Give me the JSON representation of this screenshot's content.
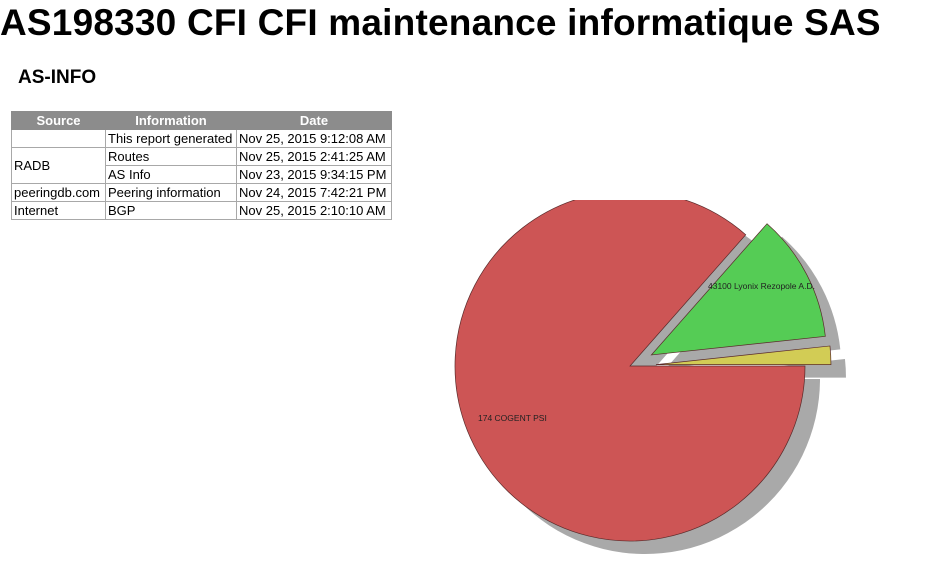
{
  "page": {
    "title": "AS198330 CFI CFI maintenance informatique SAS",
    "section_heading": "AS-INFO"
  },
  "info_table": {
    "headers": [
      "Source",
      "Information",
      "Date"
    ],
    "rows": [
      {
        "source": "",
        "information": "This report generated",
        "date": "Nov 25, 2015 9:12:08 AM"
      },
      {
        "source": "RADB",
        "information": "Routes",
        "date": "Nov 25, 2015 2:41:25 AM"
      },
      {
        "source": "",
        "information": "AS Info",
        "date": "Nov 23, 2015 9:34:15 PM"
      },
      {
        "source": "peeringdb.com",
        "information": "Peering information",
        "date": "Nov 24, 2015 7:42:21 PM"
      },
      {
        "source": "Internet",
        "information": "BGP",
        "date": "Nov 25, 2015 2:10:10 AM"
      }
    ]
  },
  "chart_data": {
    "type": "pie",
    "title": "",
    "exploded": true,
    "shadow": true,
    "slices": [
      {
        "label": "174 COGENT PSI",
        "percent": 86.5,
        "color": "#cd5555"
      },
      {
        "label": "43100 Lyonix Rezopole A.D.",
        "percent": 11.8,
        "color": "#55cc55"
      },
      {
        "label": "",
        "percent": 1.7,
        "color": "#d2cc55"
      }
    ]
  }
}
